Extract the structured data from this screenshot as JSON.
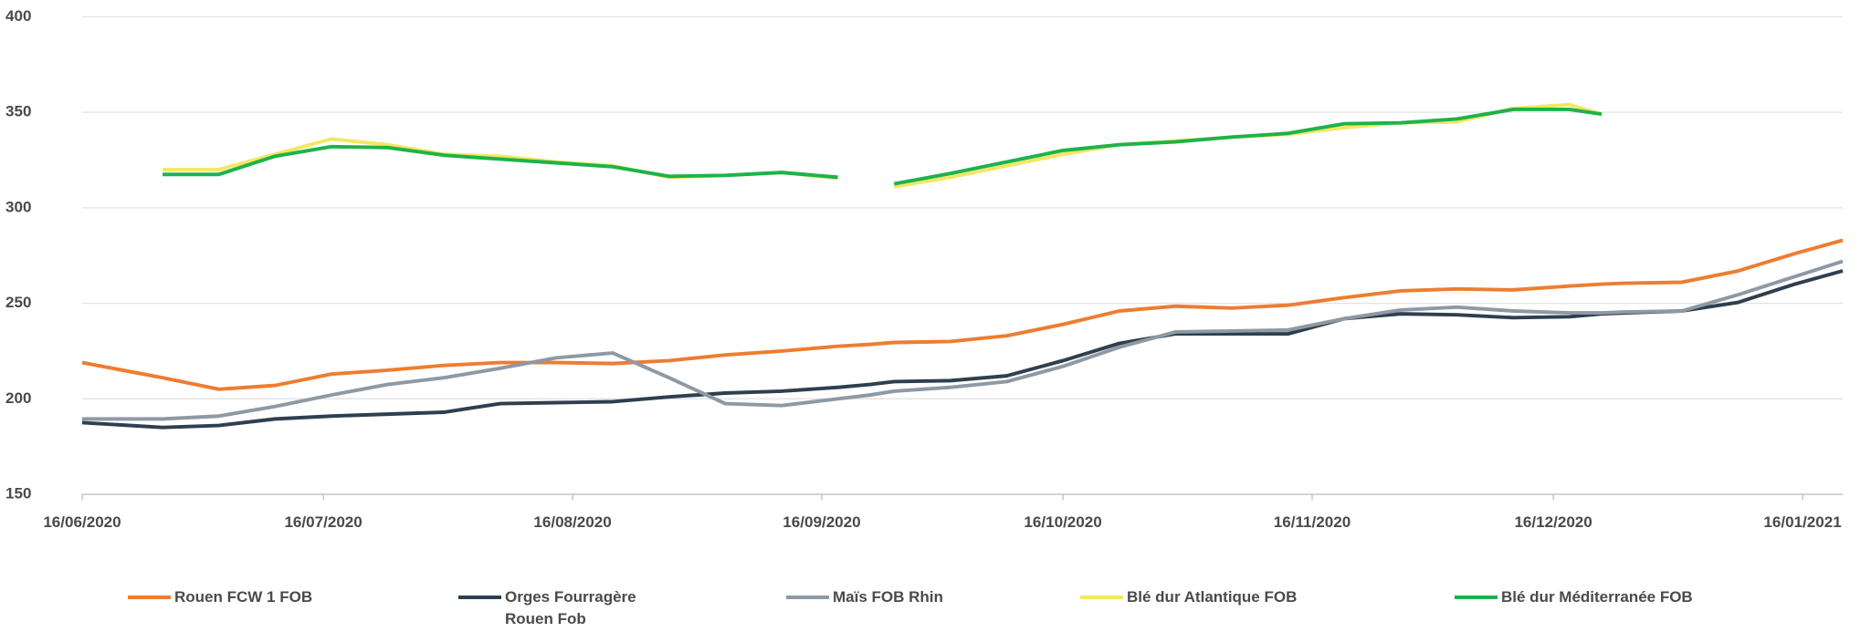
{
  "chart_data": {
    "type": "line",
    "x": [
      "2020-06-16",
      "2020-06-26",
      "2020-07-03",
      "2020-07-10",
      "2020-07-17",
      "2020-07-24",
      "2020-07-31",
      "2020-08-07",
      "2020-08-14",
      "2020-08-21",
      "2020-08-28",
      "2020-09-04",
      "2020-09-11",
      "2020-09-18",
      "2020-09-22",
      "2020-09-25",
      "2020-10-02",
      "2020-10-09",
      "2020-10-16",
      "2020-10-23",
      "2020-10-30",
      "2020-11-06",
      "2020-11-13",
      "2020-11-20",
      "2020-11-27",
      "2020-12-04",
      "2020-12-11",
      "2020-12-18",
      "2020-12-22",
      "2020-12-25",
      "2021-01-01",
      "2021-01-08",
      "2021-01-15",
      "2021-01-21"
    ],
    "series": [
      {
        "name": "Rouen FCW 1 FOB",
        "color": "#ed7d31",
        "values": [
          219,
          211,
          205,
          207,
          213,
          215,
          217.5,
          219,
          219,
          218.5,
          220,
          223,
          225,
          227.5,
          228.5,
          229.5,
          230,
          233,
          239,
          246,
          248.5,
          247.5,
          249,
          253,
          256.5,
          257.5,
          257,
          259,
          260,
          260.5,
          261,
          267,
          276,
          283
        ]
      },
      {
        "name": "Orges Fourragère Rouen Fob",
        "color": "#2e3f4f",
        "values": [
          187.5,
          185,
          186,
          189.5,
          191,
          192,
          193,
          197.5,
          198,
          198.5,
          201,
          203,
          204,
          206,
          207.5,
          209,
          209.5,
          212,
          220,
          229,
          234,
          234,
          234,
          242,
          244.5,
          244,
          242.5,
          243,
          244.5,
          245,
          246,
          250.5,
          260,
          267
        ]
      },
      {
        "name": "Maïs FOB Rhin",
        "color": "#8e99a4",
        "values": [
          189.5,
          189.5,
          191,
          196,
          202,
          207.5,
          211,
          216,
          221.5,
          224,
          211,
          197.5,
          196.5,
          200,
          202,
          204,
          206,
          209,
          217,
          227,
          235,
          235.5,
          236,
          242,
          246.5,
          248,
          246,
          245,
          245,
          245.5,
          246,
          254.5,
          264,
          272
        ]
      },
      {
        "name": "Blé dur Atlantique FOB",
        "color": "#f5e663",
        "values": [
          null,
          320,
          320,
          328,
          336,
          333,
          328,
          327,
          324,
          322,
          316,
          317,
          318.5,
          315.5,
          null,
          311,
          316,
          322,
          328,
          333,
          335,
          337,
          338.5,
          342,
          344.5,
          345,
          352,
          354,
          349,
          null,
          null,
          null,
          null,
          null
        ]
      },
      {
        "name": "Blé dur Méditerranée FOB",
        "color": "#1db34a",
        "values": [
          null,
          317.5,
          317.5,
          327,
          332,
          331.5,
          327.5,
          325.5,
          323.5,
          321.5,
          316.5,
          317,
          318.5,
          316,
          null,
          312.5,
          318,
          324,
          330,
          333,
          334.5,
          337,
          339,
          344,
          344.5,
          346.5,
          351.5,
          351.5,
          349,
          null,
          null,
          null,
          null,
          null
        ]
      }
    ],
    "xlim": [
      "2020-06-16",
      "2021-01-21"
    ],
    "xticks": [
      {
        "value": "2020-06-16",
        "label": "16/06/2020"
      },
      {
        "value": "2020-07-16",
        "label": "16/07/2020"
      },
      {
        "value": "2020-08-16",
        "label": "16/08/2020"
      },
      {
        "value": "2020-09-16",
        "label": "16/09/2020"
      },
      {
        "value": "2020-10-16",
        "label": "16/10/2020"
      },
      {
        "value": "2020-11-16",
        "label": "16/11/2020"
      },
      {
        "value": "2020-12-16",
        "label": "16/12/2020"
      },
      {
        "value": "2021-01-16",
        "label": "16/01/2021"
      }
    ],
    "ylim": [
      150,
      400
    ],
    "yticks": [
      150,
      200,
      250,
      300,
      350,
      400
    ],
    "grid": true,
    "legend": "bottom"
  }
}
